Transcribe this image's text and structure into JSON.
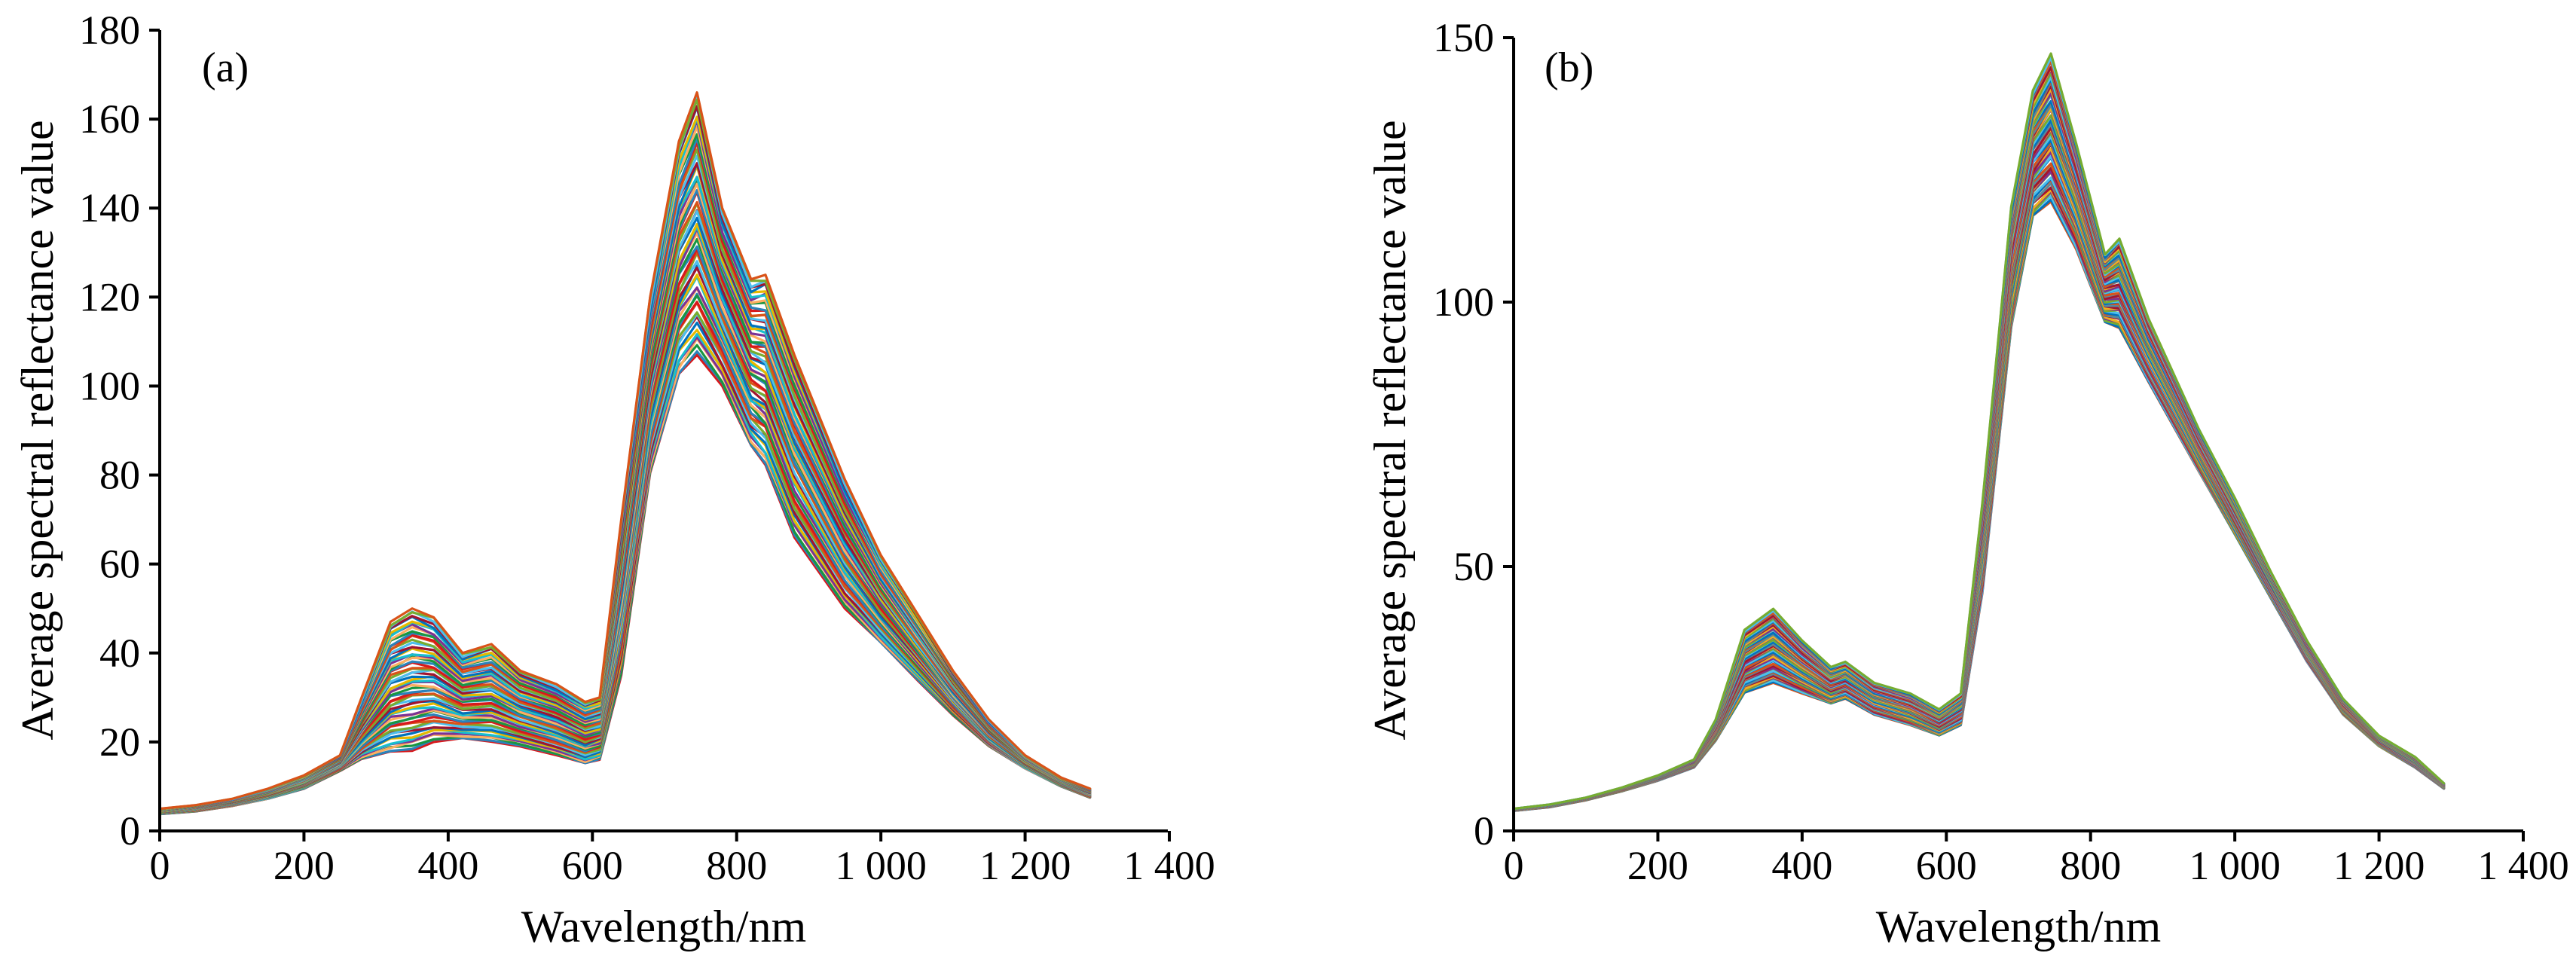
{
  "chart_data": [
    {
      "type": "line",
      "panel_label": "(a)",
      "xlabel": "Wavelength/nm",
      "ylabel": "Average spectral reflectance value",
      "xlim": [
        0,
        1400
      ],
      "ylim": [
        0,
        180
      ],
      "x_ticks": [
        0,
        200,
        400,
        600,
        800,
        1000,
        1200,
        1400
      ],
      "x_tick_labels": [
        "0",
        "200",
        "400",
        "600",
        "800",
        "1 000",
        "1 200",
        "1 400"
      ],
      "y_ticks": [
        0,
        20,
        40,
        60,
        80,
        100,
        120,
        140,
        160,
        180
      ],
      "y_tick_labels": [
        "0",
        "20",
        "40",
        "60",
        "80",
        "100",
        "120",
        "140",
        "160",
        "180"
      ],
      "grid": false,
      "legend": "none",
      "series_count": 60,
      "x": [
        0,
        50,
        100,
        150,
        200,
        250,
        280,
        320,
        350,
        380,
        420,
        460,
        500,
        550,
        590,
        610,
        640,
        680,
        720,
        745,
        780,
        820,
        840,
        880,
        950,
        1000,
        1050,
        1100,
        1150,
        1200,
        1250,
        1290
      ],
      "y_envelope_min": [
        3.8,
        4.4,
        5.6,
        7.2,
        9.5,
        13.5,
        16,
        17.5,
        18,
        20,
        20.5,
        20,
        19,
        17,
        15,
        16,
        35,
        80,
        102,
        107,
        100,
        86,
        82,
        66,
        50,
        42,
        34,
        26,
        19,
        14,
        10,
        7.5
      ],
      "y_envelope_max": [
        5,
        5.8,
        7.2,
        9.5,
        12.5,
        17,
        30,
        47,
        50,
        48,
        40,
        42,
        36,
        33,
        29,
        30,
        70,
        120,
        155,
        166,
        140,
        124,
        125,
        107,
        79,
        62,
        49,
        36,
        25,
        17,
        12,
        9.5
      ],
      "colors": [
        "#d7191c",
        "#2b83ba",
        "#1a9641",
        "#fdae61",
        "#7b3294",
        "#17becf",
        "#e6b800",
        "#0072bd",
        "#a2142f",
        "#4dbeee",
        "#77ac30",
        "#d95319"
      ]
    },
    {
      "type": "line",
      "panel_label": "(b)",
      "xlabel": "Wavelength/nm",
      "ylabel": "Average spectral reflectance value",
      "xlim": [
        0,
        1400
      ],
      "ylim": [
        0,
        150
      ],
      "x_ticks": [
        0,
        200,
        400,
        600,
        800,
        1000,
        1200,
        1400
      ],
      "x_tick_labels": [
        "0",
        "200",
        "400",
        "600",
        "800",
        "1 000",
        "1 200",
        "1 400"
      ],
      "y_ticks": [
        0,
        50,
        100,
        150
      ],
      "y_tick_labels": [
        "0",
        "50",
        "100",
        "150"
      ],
      "grid": false,
      "legend": "none",
      "series_count": 60,
      "x": [
        0,
        50,
        100,
        150,
        200,
        250,
        280,
        320,
        360,
        400,
        440,
        460,
        500,
        550,
        590,
        620,
        650,
        690,
        720,
        745,
        780,
        820,
        840,
        880,
        950,
        1000,
        1050,
        1100,
        1150,
        1200,
        1250,
        1290
      ],
      "y_envelope_min": [
        3.8,
        4.5,
        5.8,
        7.5,
        9.5,
        12,
        17,
        26,
        28,
        26,
        24,
        25,
        22,
        20,
        18,
        20,
        45,
        95,
        116,
        119,
        110,
        96,
        95,
        85,
        68,
        56,
        44,
        32,
        22,
        16,
        12,
        8
      ],
      "y_envelope_max": [
        4.2,
        5,
        6.3,
        8.2,
        10.5,
        13.5,
        21,
        38,
        42,
        36,
        31,
        32,
        28,
        26,
        23,
        26,
        62,
        118,
        140,
        147,
        130,
        109,
        112,
        97,
        76,
        63,
        49,
        36,
        25,
        18,
        14,
        9
      ],
      "colors": [
        "#d95319",
        "#0072bd",
        "#4dbeee",
        "#77ac30",
        "#7e2f8e",
        "#edb120",
        "#a2142f",
        "#5a8a9a"
      ]
    }
  ]
}
